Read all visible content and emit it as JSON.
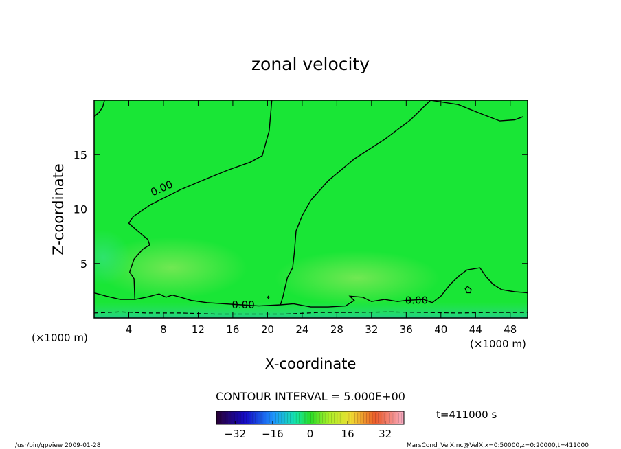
{
  "chart_data": {
    "type": "heatmap",
    "title": "zonal velocity",
    "xlabel": "X-coordinate",
    "ylabel": "Z-coordinate",
    "x_unit_left": "(×1000 m)",
    "x_unit_right": "(×1000 m)",
    "y_unit": "(×1000 m)",
    "xlim": [
      0,
      50
    ],
    "ylim": [
      0,
      20
    ],
    "x_ticks": [
      4,
      8,
      12,
      16,
      20,
      24,
      28,
      32,
      36,
      40,
      44,
      48
    ],
    "y_ticks": [
      5,
      10,
      15
    ],
    "contour_labels": [
      {
        "text": "0.00",
        "x": 7.8,
        "z": 11.9
      },
      {
        "text": "0.00",
        "x": 17.2,
        "z": 1.2
      },
      {
        "text": "0.00",
        "x": 37.2,
        "z": 1.6
      }
    ],
    "zero_contour": [
      [
        [
          0.0,
          18.5
        ],
        [
          0.6,
          18.9
        ],
        [
          1.0,
          19.4
        ],
        [
          1.2,
          20.0
        ]
      ],
      [
        [
          20.5,
          20.0
        ],
        [
          20.2,
          17.2
        ],
        [
          19.4,
          14.9
        ],
        [
          18.0,
          14.3
        ],
        [
          15.5,
          13.6
        ],
        [
          13.0,
          12.8
        ],
        [
          10.0,
          11.8
        ],
        [
          6.5,
          10.4
        ],
        [
          4.5,
          9.3
        ],
        [
          4.0,
          8.7
        ],
        [
          5.0,
          8.0
        ],
        [
          6.2,
          7.2
        ],
        [
          6.4,
          6.7
        ],
        [
          5.6,
          6.3
        ],
        [
          4.6,
          5.4
        ],
        [
          4.1,
          4.2
        ],
        [
          4.6,
          3.6
        ],
        [
          4.7,
          1.7
        ],
        [
          3.0,
          1.7
        ],
        [
          1.4,
          2.0
        ],
        [
          0.0,
          2.3
        ]
      ],
      [
        [
          38.8,
          20.0
        ],
        [
          36.5,
          18.2
        ],
        [
          33.5,
          16.4
        ],
        [
          30.0,
          14.6
        ],
        [
          27.0,
          12.6
        ],
        [
          25.0,
          10.8
        ],
        [
          24.0,
          9.4
        ],
        [
          23.3,
          8.0
        ],
        [
          23.1,
          6.0
        ],
        [
          22.9,
          4.6
        ],
        [
          22.3,
          3.7
        ],
        [
          22.0,
          2.7
        ],
        [
          21.8,
          2.0
        ],
        [
          21.5,
          1.2
        ]
      ],
      [
        [
          38.8,
          20.0
        ],
        [
          42.0,
          19.6
        ],
        [
          44.5,
          18.8
        ],
        [
          46.8,
          18.1
        ],
        [
          48.5,
          18.2
        ],
        [
          49.5,
          18.5
        ]
      ],
      [
        [
          4.7,
          1.7
        ],
        [
          6.0,
          1.9
        ],
        [
          7.5,
          2.2
        ],
        [
          8.3,
          1.9
        ],
        [
          9.0,
          2.1
        ],
        [
          10.0,
          1.9
        ],
        [
          11.2,
          1.6
        ],
        [
          13.0,
          1.4
        ],
        [
          15.0,
          1.3
        ],
        [
          17.0,
          1.2
        ],
        [
          19.0,
          1.1
        ],
        [
          21.5,
          1.2
        ],
        [
          23.0,
          1.3
        ],
        [
          25.0,
          1.0
        ],
        [
          27.0,
          1.0
        ],
        [
          29.0,
          1.1
        ],
        [
          30.0,
          1.6
        ],
        [
          29.5,
          2.0
        ],
        [
          31.0,
          1.9
        ],
        [
          32.0,
          1.5
        ],
        [
          33.5,
          1.7
        ],
        [
          35.0,
          1.5
        ],
        [
          36.0,
          1.6
        ],
        [
          38.0,
          1.7
        ],
        [
          39.0,
          1.4
        ],
        [
          40.0,
          2.0
        ],
        [
          41.0,
          3.0
        ],
        [
          42.0,
          3.8
        ],
        [
          43.0,
          4.4
        ],
        [
          44.5,
          4.6
        ],
        [
          45.2,
          3.8
        ],
        [
          46.0,
          3.1
        ],
        [
          47.0,
          2.6
        ],
        [
          48.5,
          2.4
        ],
        [
          50.0,
          2.3
        ]
      ]
    ],
    "negative_contour": [
      [
        0.0,
        0.45
      ],
      [
        3.0,
        0.55
      ],
      [
        6.0,
        0.45
      ],
      [
        10.0,
        0.45
      ],
      [
        14.0,
        0.35
      ],
      [
        18.0,
        0.35
      ],
      [
        22.0,
        0.35
      ],
      [
        26.0,
        0.5
      ],
      [
        30.0,
        0.5
      ],
      [
        34.0,
        0.55
      ],
      [
        38.0,
        0.5
      ],
      [
        42.0,
        0.45
      ],
      [
        46.0,
        0.5
      ],
      [
        50.0,
        0.5
      ]
    ],
    "closed_contours": [
      [
        [
          43.5,
          2.6
        ],
        [
          43.1,
          2.9
        ],
        [
          42.8,
          2.7
        ],
        [
          43.0,
          2.3
        ],
        [
          43.4,
          2.3
        ],
        [
          43.5,
          2.6
        ]
      ],
      [
        [
          20.1,
          2.0
        ],
        [
          20.2,
          1.9
        ],
        [
          20.1,
          1.8
        ],
        [
          20.0,
          1.9
        ],
        [
          20.1,
          2.0
        ]
      ]
    ],
    "colorbar": {
      "ticks": [
        -32,
        -16,
        0,
        16,
        32
      ],
      "tick_labels": [
        "−32",
        "−16",
        "0",
        "16",
        "32"
      ],
      "range": [
        -40,
        40
      ]
    },
    "contour_interval": "CONTOUR INTERVAL = 5.000E+00",
    "time_label": "t=411000  s",
    "footer_left": "/usr/bin/gpview   2009-01-28",
    "footer_right": "MarsCond_VelX.nc@VelX,x=0:50000,z=0:20000,t=411000"
  }
}
